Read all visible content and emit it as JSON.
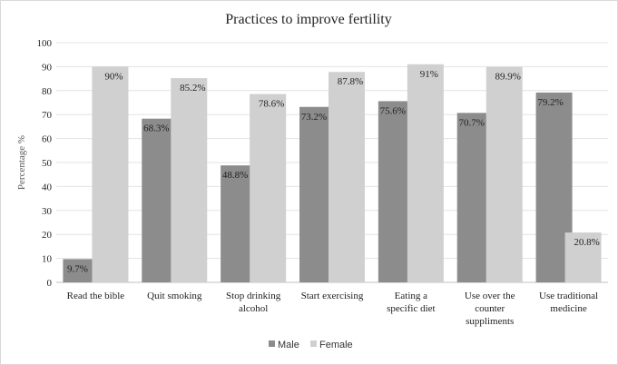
{
  "chart_data": {
    "type": "bar",
    "title": "Practices to improve fertility",
    "ylabel": "Percentage %",
    "xlabel": "",
    "ylim": [
      0,
      100
    ],
    "yticks": [
      0,
      10,
      20,
      30,
      40,
      50,
      60,
      70,
      80,
      90,
      100
    ],
    "grid": true,
    "legend_position": "bottom",
    "categories": [
      [
        "Read the bible"
      ],
      [
        "Quit smoking"
      ],
      [
        "Stop drinking",
        "alcohol"
      ],
      [
        "Start exercising"
      ],
      [
        "Eating a",
        "specific diet"
      ],
      [
        "Use over the",
        "counter",
        "suppliments"
      ],
      [
        "Use traditional",
        "medicine"
      ]
    ],
    "series": [
      {
        "name": "Male",
        "color": "#8c8c8c",
        "values": [
          9.7,
          68.3,
          48.8,
          73.2,
          75.6,
          70.7,
          79.2
        ],
        "labels": [
          "9.7%",
          "68.3%",
          "48.8%",
          "73.2%",
          "75.6%",
          "70.7%",
          "79.2%"
        ]
      },
      {
        "name": "Female",
        "color": "#d0d0d0",
        "values": [
          90,
          85.2,
          78.6,
          87.8,
          91,
          89.9,
          20.8
        ],
        "labels": [
          "90%",
          "85.2%",
          "78.6%",
          "87.8%",
          "91%",
          "89.9%",
          "20.8%"
        ]
      }
    ]
  }
}
